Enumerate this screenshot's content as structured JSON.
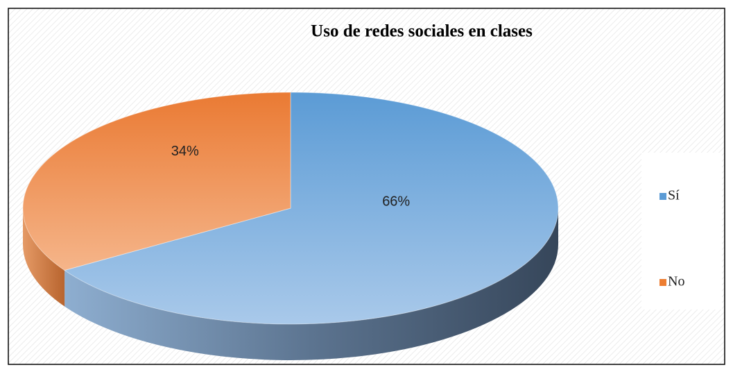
{
  "chart_data": {
    "type": "pie",
    "title": "Uso de redes sociales en clases",
    "categories": [
      "Sí",
      "No"
    ],
    "values": [
      66,
      34
    ],
    "value_labels": [
      "66%",
      "34%"
    ],
    "colors": [
      "#5b9bd5",
      "#ed7d31"
    ],
    "legend": "right"
  }
}
